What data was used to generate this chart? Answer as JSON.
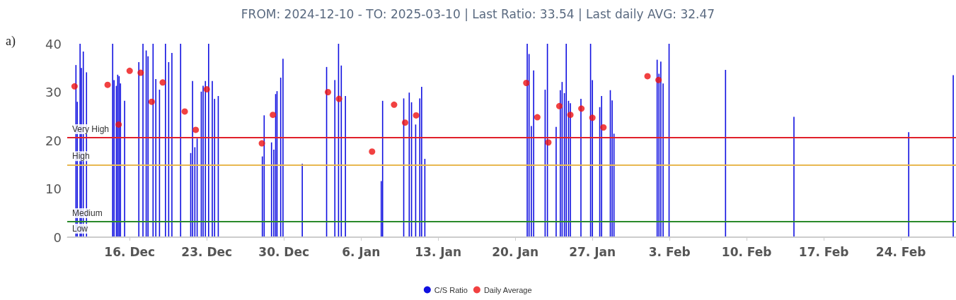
{
  "chart_data": {
    "type": "bar",
    "title": "FROM: 2024-12-10 - TO: 2025-03-10 | Last Ratio: 33.54 | Last daily AVG: 32.47",
    "annotations": [
      "a)"
    ],
    "xlim": [
      "2024-12-10T08:00",
      "2025-03-01"
    ],
    "xticks": [
      {
        "value": "2024-12-16",
        "label": "16. Dec"
      },
      {
        "value": "2024-12-23",
        "label": "23. Dec"
      },
      {
        "value": "2024-12-30",
        "label": "30. Dec"
      },
      {
        "value": "2025-01-06",
        "label": "6. Jan"
      },
      {
        "value": "2025-01-13",
        "label": "13. Jan"
      },
      {
        "value": "2025-01-20",
        "label": "20. Jan"
      },
      {
        "value": "2025-01-27",
        "label": "27. Jan"
      },
      {
        "value": "2025-02-03",
        "label": "3. Feb"
      },
      {
        "value": "2025-02-10",
        "label": "10. Feb"
      },
      {
        "value": "2025-02-17",
        "label": "17. Feb"
      },
      {
        "value": "2025-02-24",
        "label": "24. Feb"
      }
    ],
    "ylim": [
      0,
      40
    ],
    "yticks": [
      0,
      10,
      20,
      30,
      40
    ],
    "grid": false,
    "legend": "bottom",
    "series": [
      {
        "name": "C/S Ratio",
        "color": "#1010e0",
        "x": [
          "2024-12-11T03:00",
          "2024-12-11T06:00",
          "2024-12-11T12:00",
          "2024-12-11T15:00",
          "2024-12-11T19:00",
          "2024-12-12T02:00",
          "2024-12-14T11:00",
          "2024-12-14T14:00",
          "2024-12-14T19:00",
          "2024-12-14T22:00",
          "2024-12-15T01:00",
          "2024-12-15T04:00",
          "2024-12-15T13:00",
          "2024-12-16T20:00",
          "2024-12-17T05:00",
          "2024-12-17T12:00",
          "2024-12-17T16:00",
          "2024-12-18T03:00",
          "2024-12-18T09:00",
          "2024-12-18T17:00",
          "2024-12-19T06:00",
          "2024-12-19T13:00",
          "2024-12-19T20:00",
          "2024-12-20T15:00",
          "2024-12-21T13:00",
          "2024-12-21T17:00",
          "2024-12-21T22:00",
          "2024-12-22T03:00",
          "2024-12-22T12:00",
          "2024-12-22T16:00",
          "2024-12-22T21:00",
          "2024-12-23T04:00",
          "2024-12-23T12:00",
          "2024-12-23T17:00",
          "2024-12-24T01:00",
          "2024-12-28T01:00",
          "2024-12-28T05:00",
          "2024-12-28T21:00",
          "2024-12-29T02:00",
          "2024-12-29T06:00",
          "2024-12-29T09:00",
          "2024-12-29T17:00",
          "2024-12-29T22:00",
          "2024-12-31T16:00",
          "2025-01-02T21:00",
          "2025-01-03T15:00",
          "2025-01-03T23:00",
          "2025-01-04T05:00",
          "2025-01-04T14:00",
          "2025-01-07T20:00",
          "2025-01-07T23:00",
          "2025-01-09T21:00",
          "2025-01-10T09:00",
          "2025-01-10T14:00",
          "2025-01-10T23:00",
          "2025-01-11T08:00",
          "2025-01-11T12:00",
          "2025-01-11T19:00",
          "2025-01-21T02:00",
          "2025-01-21T06:00",
          "2025-01-21T11:00",
          "2025-01-21T16:00",
          "2025-01-22T17:00",
          "2025-01-22T22:00",
          "2025-01-23T17:00",
          "2025-01-24T02:00",
          "2025-01-24T06:00",
          "2025-01-24T11:00",
          "2025-01-24T15:00",
          "2025-01-24T20:00",
          "2025-01-25T00:00",
          "2025-01-25T23:00",
          "2025-01-26T20:00",
          "2025-01-27T00:00",
          "2025-01-27T16:00",
          "2025-01-27T20:00",
          "2025-01-28T15:00",
          "2025-01-28T19:00",
          "2025-01-28T23:00",
          "2025-02-01T21:00",
          "2025-02-02T01:00",
          "2025-02-02T05:00",
          "2025-02-02T10:00",
          "2025-02-02T23:00",
          "2025-02-08T02:00",
          "2025-02-14T07:00",
          "2025-02-24T17:00",
          "2025-02-28T18:00"
        ],
        "values": [
          35.6,
          28,
          40,
          35,
          38.4,
          34.1,
          40,
          32.5,
          31.3,
          33.6,
          33.3,
          31.8,
          28.2,
          36.2,
          40,
          38.6,
          37.4,
          40,
          32.7,
          30.5,
          40,
          36.2,
          38.1,
          40,
          17.4,
          32.3,
          18.6,
          20.4,
          30.1,
          31.3,
          32.3,
          40,
          32.3,
          28.6,
          29.2,
          16.7,
          25.2,
          19.6,
          18.1,
          29.6,
          30.2,
          33,
          36.9,
          15.2,
          35.2,
          32.5,
          40,
          35.5,
          29.2,
          11.6,
          28.2,
          28.7,
          29.9,
          27.9,
          23.3,
          28.7,
          31.1,
          16.2,
          40,
          37.9,
          23,
          34.5,
          30.5,
          40,
          22.8,
          30.4,
          32.1,
          29.8,
          40,
          28.2,
          27.7,
          28.6,
          40,
          32.5,
          26.9,
          29.2,
          30.4,
          28.3,
          21.4,
          36.7,
          33.8,
          36.3,
          31.8,
          40,
          34.6,
          24.9,
          21.7,
          33.5
        ]
      },
      {
        "name": "Daily Average",
        "type": "scatter",
        "marker": "circle",
        "color": "#ee1111",
        "x": [
          "2024-12-11",
          "2024-12-14",
          "2024-12-15",
          "2024-12-16",
          "2024-12-17",
          "2024-12-18",
          "2024-12-19",
          "2024-12-21",
          "2024-12-22",
          "2024-12-23",
          "2024-12-28",
          "2024-12-29",
          "2025-01-03",
          "2025-01-04",
          "2025-01-07",
          "2025-01-09",
          "2025-01-10",
          "2025-01-11",
          "2025-01-21",
          "2025-01-22",
          "2025-01-23",
          "2025-01-24",
          "2025-01-25",
          "2025-01-26",
          "2025-01-27",
          "2025-01-28",
          "2025-02-01",
          "2025-02-02"
        ],
        "values": [
          31.2,
          31.5,
          23.3,
          34.4,
          34,
          28,
          32,
          26,
          22.2,
          30.6,
          19.4,
          25.3,
          30,
          28.6,
          17.7,
          27.4,
          23.7,
          25.2,
          31.9,
          24.8,
          19.6,
          27.1,
          25.3,
          26.6,
          24.7,
          22.7,
          33.3,
          32.5
        ]
      }
    ],
    "ref_lines": [
      {
        "axis": "y",
        "value": 20.6,
        "label": "Very High",
        "color": "#e0202a"
      },
      {
        "axis": "y",
        "value": 15,
        "label": "High",
        "color": "#e8b850"
      },
      {
        "axis": "y",
        "value": 3.2,
        "label": "Medium",
        "color": "#2a8a2a"
      },
      {
        "axis": "y",
        "value": 0,
        "label": "Low",
        "color": "#cccccc"
      }
    ]
  }
}
